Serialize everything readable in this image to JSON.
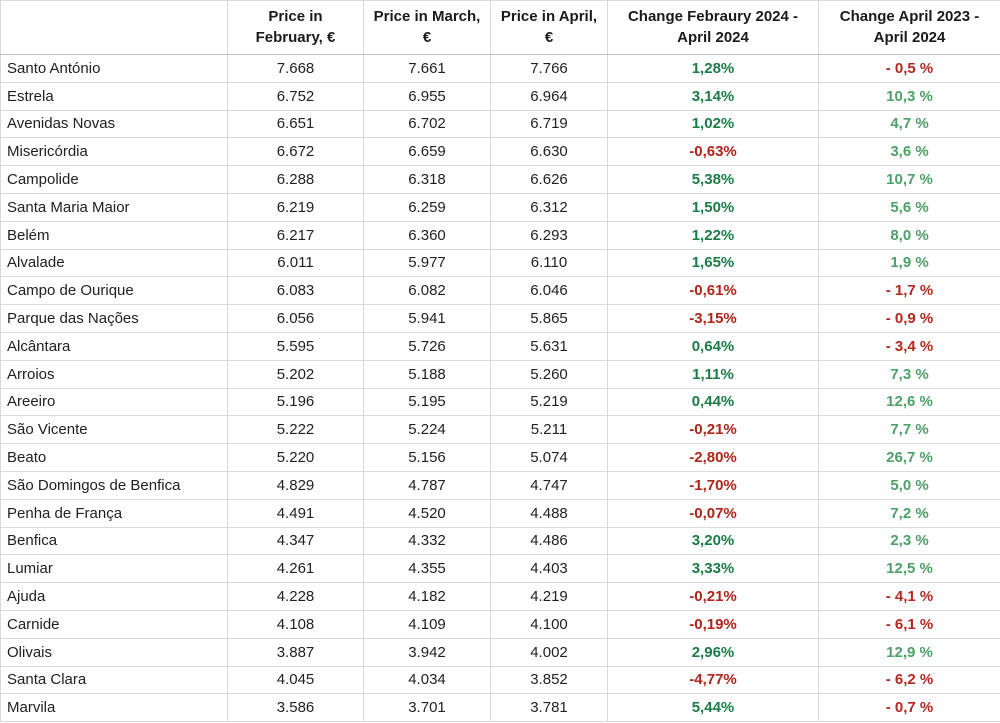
{
  "chart_data": {
    "type": "table",
    "columns": [
      "",
      "Price in February, €",
      "Price in March, €",
      "Price in April, €",
      "Change Febraury 2024 - April 2024",
      "Change April 2023 - April 2024"
    ],
    "rows": [
      [
        "Santo António",
        "7.668",
        "7.661",
        "7.766",
        "1,28%",
        "- 0,5 %"
      ],
      [
        "Estrela",
        "6.752",
        "6.955",
        "6.964",
        "3,14%",
        "10,3 %"
      ],
      [
        "Avenidas Novas",
        "6.651",
        "6.702",
        "6.719",
        "1,02%",
        "4,7 %"
      ],
      [
        "Misericórdia",
        "6.672",
        "6.659",
        "6.630",
        "-0,63%",
        "3,6 %"
      ],
      [
        "Campolide",
        "6.288",
        "6.318",
        "6.626",
        "5,38%",
        "10,7 %"
      ],
      [
        "Santa Maria Maior",
        "6.219",
        "6.259",
        "6.312",
        "1,50%",
        "5,6 %"
      ],
      [
        "Belém",
        "6.217",
        "6.360",
        "6.293",
        "1,22%",
        "8,0 %"
      ],
      [
        "Alvalade",
        "6.011",
        "5.977",
        "6.110",
        "1,65%",
        "1,9 %"
      ],
      [
        "Campo de Ourique",
        "6.083",
        "6.082",
        "6.046",
        "-0,61%",
        "- 1,7 %"
      ],
      [
        "Parque das Nações",
        "6.056",
        "5.941",
        "5.865",
        "-3,15%",
        "- 0,9 %"
      ],
      [
        "Alcântara",
        "5.595",
        "5.726",
        "5.631",
        "0,64%",
        "- 3,4 %"
      ],
      [
        "Arroios",
        "5.202",
        "5.188",
        "5.260",
        "1,11%",
        "7,3 %"
      ],
      [
        "Areeiro",
        "5.196",
        "5.195",
        "5.219",
        "0,44%",
        "12,6 %"
      ],
      [
        "São Vicente",
        "5.222",
        "5.224",
        "5.211",
        "-0,21%",
        "7,7 %"
      ],
      [
        "Beato",
        "5.220",
        "5.156",
        "5.074",
        "-2,80%",
        "26,7 %"
      ],
      [
        "São Domingos de Benfica",
        "4.829",
        "4.787",
        "4.747",
        "-1,70%",
        "5,0 %"
      ],
      [
        "Penha de França",
        "4.491",
        "4.520",
        "4.488",
        "-0,07%",
        "7,2 %"
      ],
      [
        "Benfica",
        "4.347",
        "4.332",
        "4.486",
        "3,20%",
        "2,3 %"
      ],
      [
        "Lumiar",
        "4.261",
        "4.355",
        "4.403",
        "3,33%",
        "12,5 %"
      ],
      [
        "Ajuda",
        "4.228",
        "4.182",
        "4.219",
        "-0,21%",
        "- 4,1 %"
      ],
      [
        "Carnide",
        "4.108",
        "4.109",
        "4.100",
        "-0,19%",
        "- 6,1 %"
      ],
      [
        "Olivais",
        "3.887",
        "3.942",
        "4.002",
        "2,96%",
        "12,9 %"
      ],
      [
        "Santa Clara",
        "4.045",
        "4.034",
        "3.852",
        "-4,77%",
        "- 6,2 %"
      ],
      [
        "Marvila",
        "3.586",
        "3.701",
        "3.781",
        "5,44%",
        "- 0,7 %"
      ]
    ],
    "layout_hints": {
      "grid": "on",
      "positive_change_color_mom": "dark green, bold",
      "negative_change_color_mom": "dark red, bold",
      "positive_change_color_yoy": "medium green, bold",
      "negative_change_color_yoy": "dark red, bold"
    }
  },
  "colors": {
    "green_dark": "#1a7d46",
    "red_dark": "#b02318",
    "green_light": "#4f9f68",
    "red_light": "#b3271e",
    "grid_line": "#d9d9d9",
    "header_rule": "#bdbdbd",
    "text": "#202124"
  }
}
